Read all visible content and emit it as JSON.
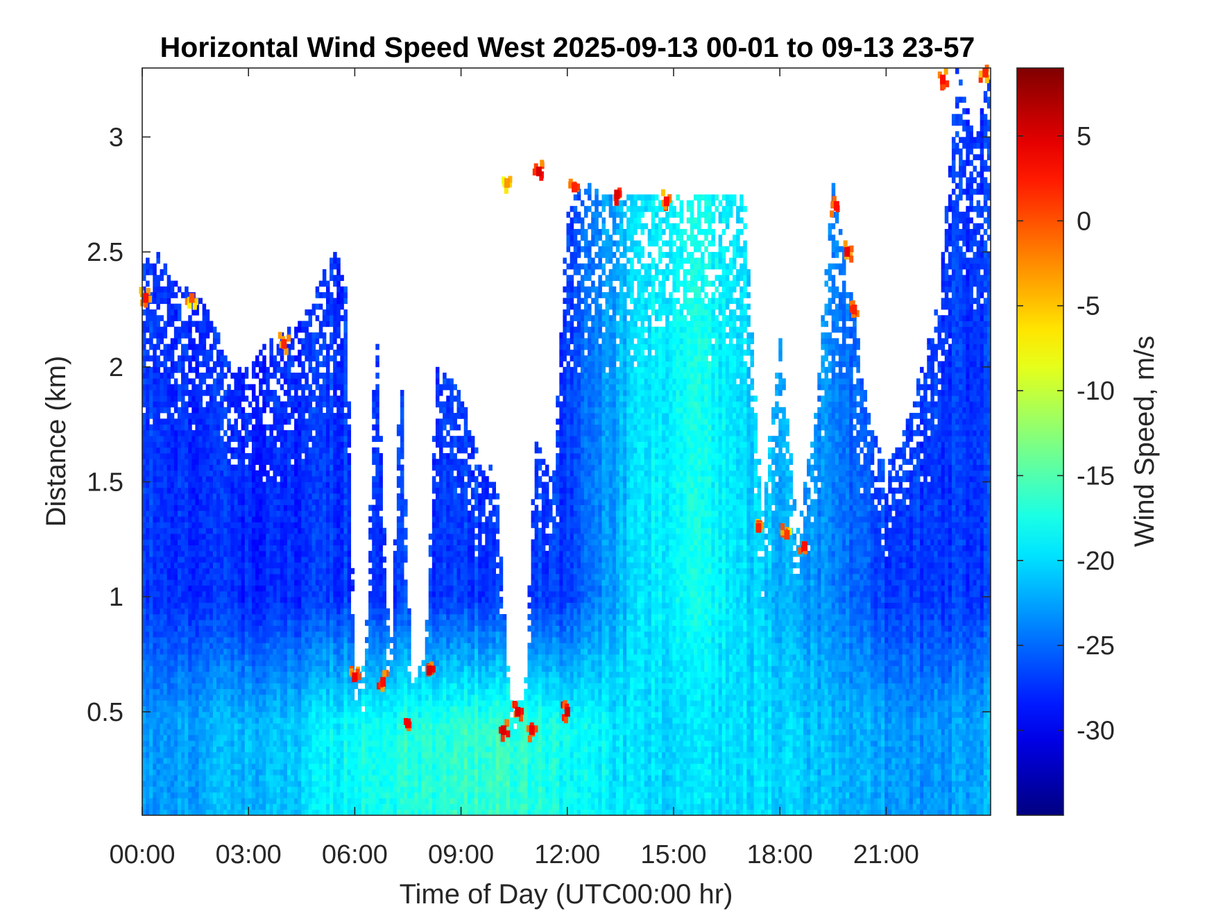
{
  "chart_data": {
    "type": "heatmap",
    "title": "Horizontal Wind Speed West 2025-09-13 00-01 to 09-13 23-57",
    "xlabel": "Time of Day (UTC00:00 hr)",
    "ylabel": "Distance (km)",
    "colorbar_label": "Wind Speed, m/s",
    "colormap": "jet",
    "x_unit": "hours",
    "xlim": [
      0,
      23.95
    ],
    "ylim": [
      0.05,
      3.3
    ],
    "clim": [
      -35,
      9
    ],
    "x_ticks": [
      0,
      3,
      6,
      9,
      12,
      15,
      18,
      21
    ],
    "x_tick_labels": [
      "00:00",
      "03:00",
      "06:00",
      "09:00",
      "12:00",
      "15:00",
      "18:00",
      "21:00"
    ],
    "y_ticks": [
      0.5,
      1,
      1.5,
      2,
      2.5,
      3
    ],
    "y_tick_labels": [
      "0.5",
      "1",
      "1.5",
      "2",
      "2.5",
      "3"
    ],
    "c_ticks": [
      -30,
      -25,
      -20,
      -15,
      -10,
      -5,
      0,
      5
    ],
    "c_tick_labels": [
      "-30",
      "-25",
      "-20",
      "-15",
      "-10",
      "-5",
      "0",
      "5"
    ],
    "missing_color": "#ffffff",
    "approx_data_top_km": [
      [
        0,
        2.45
      ],
      [
        0.5,
        2.5
      ],
      [
        1,
        2.35
      ],
      [
        1.5,
        2.35
      ],
      [
        2,
        2.2
      ],
      [
        2.5,
        2.0
      ],
      [
        3,
        2.0
      ],
      [
        3.5,
        2.1
      ],
      [
        4,
        2.15
      ],
      [
        4.5,
        2.2
      ],
      [
        5,
        2.4
      ],
      [
        5.5,
        2.5
      ],
      [
        5.8,
        2.3
      ],
      [
        6,
        0.65
      ],
      [
        6.3,
        0.7
      ],
      [
        6.6,
        2.25
      ],
      [
        7,
        0.7
      ],
      [
        7.3,
        2.05
      ],
      [
        7.6,
        0.65
      ],
      [
        8,
        0.75
      ],
      [
        8.3,
        2.0
      ],
      [
        9,
        1.9
      ],
      [
        9.5,
        1.6
      ],
      [
        10,
        1.55
      ],
      [
        10.4,
        0.55
      ],
      [
        10.8,
        0.55
      ],
      [
        11.1,
        1.7
      ],
      [
        11.6,
        1.5
      ],
      [
        12,
        2.7
      ],
      [
        12.5,
        2.8
      ],
      [
        13,
        2.75
      ],
      [
        14,
        2.75
      ],
      [
        15,
        2.75
      ],
      [
        16,
        2.75
      ],
      [
        17,
        2.75
      ],
      [
        17.5,
        1.35
      ],
      [
        18,
        2.15
      ],
      [
        18.5,
        1.3
      ],
      [
        19,
        1.8
      ],
      [
        19.5,
        2.8
      ],
      [
        20,
        2.35
      ],
      [
        20.5,
        1.8
      ],
      [
        21,
        1.55
      ],
      [
        21.5,
        1.75
      ],
      [
        22,
        2.0
      ],
      [
        22.5,
        2.3
      ],
      [
        23,
        3.3
      ],
      [
        23.5,
        3.0
      ],
      [
        23.95,
        3.3
      ]
    ],
    "approx_low_level_speed_m_s": [
      [
        0,
        -23
      ],
      [
        2,
        -22
      ],
      [
        4,
        -21
      ],
      [
        6,
        -18
      ],
      [
        8,
        -17
      ],
      [
        10,
        -16
      ],
      [
        12,
        -18
      ],
      [
        14,
        -20
      ],
      [
        16,
        -20
      ],
      [
        18,
        -20
      ],
      [
        20,
        -22
      ],
      [
        22,
        -23
      ],
      [
        23.95,
        -22
      ]
    ],
    "approx_mid_level_speed_m_s": [
      [
        0,
        -27
      ],
      [
        3,
        -28
      ],
      [
        6,
        -27
      ],
      [
        9,
        -27
      ],
      [
        12,
        -27
      ],
      [
        14,
        -20
      ],
      [
        15.5,
        -18
      ],
      [
        17,
        -20
      ],
      [
        19,
        -23
      ],
      [
        21,
        -27
      ],
      [
        23.95,
        -27
      ]
    ],
    "notable_features": [
      {
        "x": 0.1,
        "y": 2.3,
        "value": 3
      },
      {
        "x": 1.4,
        "y": 2.3,
        "value": 0
      },
      {
        "x": 4.0,
        "y": 2.1,
        "value": 2
      },
      {
        "x": 6.0,
        "y": 0.65,
        "value": 4
      },
      {
        "x": 6.8,
        "y": 0.63,
        "value": 3
      },
      {
        "x": 7.5,
        "y": 0.45,
        "value": 4
      },
      {
        "x": 8.1,
        "y": 0.68,
        "value": 5
      },
      {
        "x": 10.2,
        "y": 0.42,
        "value": 5
      },
      {
        "x": 10.6,
        "y": 0.5,
        "value": 5
      },
      {
        "x": 11.0,
        "y": 0.42,
        "value": 4
      },
      {
        "x": 12.0,
        "y": 0.5,
        "value": 5
      },
      {
        "x": 10.3,
        "y": 2.8,
        "value": -3
      },
      {
        "x": 11.2,
        "y": 2.85,
        "value": 5
      },
      {
        "x": 12.2,
        "y": 2.78,
        "value": 2
      },
      {
        "x": 13.4,
        "y": 2.75,
        "value": 5
      },
      {
        "x": 14.8,
        "y": 2.72,
        "value": 3
      },
      {
        "x": 17.4,
        "y": 1.3,
        "value": 2
      },
      {
        "x": 18.2,
        "y": 1.27,
        "value": 1
      },
      {
        "x": 18.7,
        "y": 1.22,
        "value": 3
      },
      {
        "x": 19.6,
        "y": 2.7,
        "value": 3
      },
      {
        "x": 19.9,
        "y": 2.5,
        "value": 4
      },
      {
        "x": 20.1,
        "y": 2.25,
        "value": 2
      },
      {
        "x": 22.6,
        "y": 3.25,
        "value": 3
      },
      {
        "x": 23.8,
        "y": 3.28,
        "value": 2
      }
    ]
  }
}
